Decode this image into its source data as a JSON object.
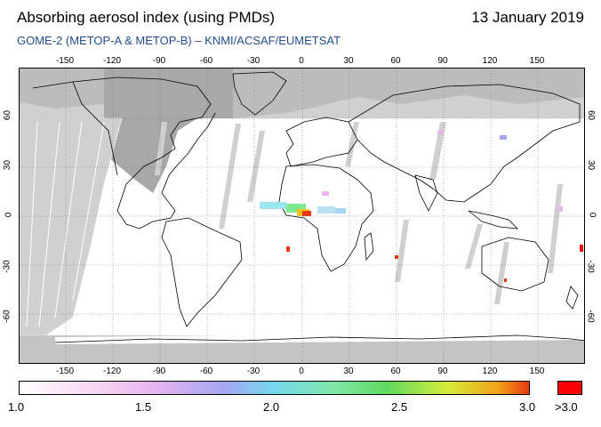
{
  "header": {
    "title": "Absorbing aerosol index (using PMDs)",
    "date": "13 January 2019",
    "subtitle": "GOME-2 (METOP-A & METOP-B)  –  KNMI/ACSAF/EUMETSAT"
  },
  "map": {
    "projection": "equirectangular",
    "lon_ticks": [
      "-150",
      "-120",
      "-90",
      "-60",
      "-30",
      "0",
      "30",
      "60",
      "90",
      "120",
      "150"
    ],
    "lat_ticks": [
      "60",
      "30",
      "0",
      "-30",
      "-60"
    ],
    "colors": {
      "land_outline": "#000000",
      "no_data": "#d0d0d0",
      "polar_night": "#a8a8a8",
      "grid": "#555555"
    }
  },
  "colorbar": {
    "labels": [
      "1.0",
      "1.5",
      "2.0",
      "2.5",
      "3.0"
    ],
    "over_label": ">3.0",
    "over_color": "#ff0000"
  }
}
